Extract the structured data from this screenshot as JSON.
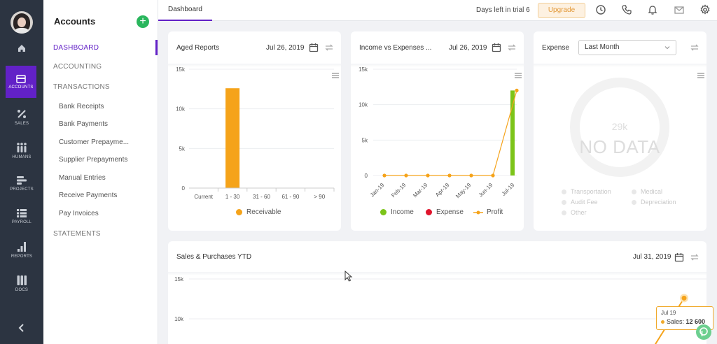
{
  "rail": {
    "items": [
      {
        "label": "",
        "icon": "home-icon"
      },
      {
        "label": "ACCOUNTS",
        "icon": "accounts-icon"
      },
      {
        "label": "SALES",
        "icon": "sales-icon"
      },
      {
        "label": "HUMANS",
        "icon": "humans-icon"
      },
      {
        "label": "PROJECTS",
        "icon": "projects-icon"
      },
      {
        "label": "PAYROLL",
        "icon": "payroll-icon"
      },
      {
        "label": "REPORTS",
        "icon": "reports-icon"
      },
      {
        "label": "DOCS",
        "icon": "docs-icon"
      }
    ]
  },
  "sidebar": {
    "title": "Accounts",
    "add_label": "+",
    "sections": [
      "DASHBOARD",
      "ACCOUNTING",
      "TRANSACTIONS",
      "STATEMENTS"
    ],
    "transactions": [
      "Bank Receipts",
      "Bank Payments",
      "Customer Prepayme...",
      "Supplier Prepayments",
      "Manual Entries",
      "Receive Payments",
      "Pay Invoices"
    ]
  },
  "topbar": {
    "tab": "Dashboard",
    "trial_text": "Days left in trial 6",
    "upgrade_label": "Upgrade"
  },
  "colors": {
    "accent": "#6221c7",
    "orange": "#f5a31a",
    "green": "#7cc419",
    "red": "#e0142c",
    "add_green": "#2ab65d"
  },
  "aged": {
    "title": "Aged Reports",
    "date": "Jul 26, 2019",
    "legend": "Receivable"
  },
  "income": {
    "title": "Income vs Expenses ...",
    "date": "Jul 26, 2019",
    "legend": [
      "Income",
      "Expense",
      "Profit"
    ]
  },
  "expense": {
    "title": "Expense",
    "select_value": "Last Month",
    "center_value": "29k",
    "no_data": "NO DATA",
    "legend": [
      "Transportation",
      "Medical",
      "Audit Fee",
      "Depreciation",
      "Other"
    ]
  },
  "sales": {
    "title": "Sales & Purchases YTD",
    "date": "Jul 31, 2019",
    "tooltip_date": "Jul 19",
    "tooltip_label": "Sales:",
    "tooltip_value": "12 600"
  },
  "chart_data": [
    {
      "type": "bar",
      "title": "Aged Reports",
      "categories": [
        "Current",
        "1 - 30",
        "31 - 60",
        "61 - 90",
        "> 90"
      ],
      "series": [
        {
          "name": "Receivable",
          "values": [
            0,
            12600,
            0,
            0,
            0
          ]
        }
      ],
      "yticks": [
        "15k",
        "10k",
        "5k",
        "0"
      ],
      "ylim": [
        0,
        15000
      ]
    },
    {
      "type": "bar",
      "title": "Income vs Expenses ...",
      "categories": [
        "Jan-19",
        "Feb-19",
        "Mar-19",
        "Apr-19",
        "May-19",
        "Jun-19",
        "Jul-19"
      ],
      "series": [
        {
          "name": "Income",
          "values": [
            0,
            0,
            0,
            0,
            0,
            0,
            12000
          ]
        },
        {
          "name": "Expense",
          "values": [
            0,
            0,
            0,
            0,
            0,
            0,
            0
          ]
        },
        {
          "name": "Profit",
          "values": [
            0,
            0,
            0,
            0,
            0,
            0,
            12000
          ]
        }
      ],
      "yticks": [
        "15k",
        "10k",
        "5k",
        "0"
      ],
      "ylim": [
        0,
        15000
      ]
    },
    {
      "type": "line",
      "title": "Sales & Purchases YTD",
      "series": [
        {
          "name": "Sales",
          "values": [
            12600
          ]
        }
      ],
      "yticks": [
        "15k",
        "10k"
      ],
      "ylim": [
        0,
        15000
      ]
    }
  ]
}
